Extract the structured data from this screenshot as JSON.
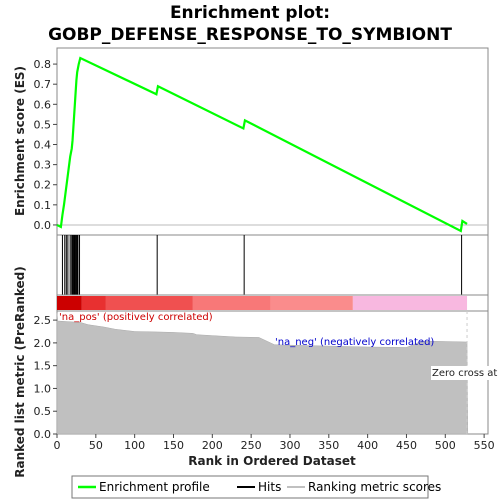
{
  "chart_data": [
    {
      "type": "line",
      "title": [
        "Enrichment plot:",
        "GOBP_DEFENSE_RESPONSE_TO_SYMBIONT"
      ],
      "ylabel": "Enrichment score (ES)",
      "ylim": [
        -0.05,
        0.88
      ],
      "yticks": [
        0.0,
        0.1,
        0.2,
        0.3,
        0.4,
        0.5,
        0.6,
        0.7,
        0.8
      ],
      "xlim": [
        0,
        555
      ],
      "series": [
        {
          "name": "Enrichment profile",
          "color": "#00ff00",
          "x": [
            0,
            5,
            7,
            9,
            11,
            13,
            15,
            17,
            19,
            20,
            21,
            22,
            23,
            24,
            25,
            26,
            27,
            28,
            30,
            128,
            130,
            240,
            242,
            520,
            522,
            528
          ],
          "y": [
            0.0,
            -0.01,
            0.05,
            0.1,
            0.16,
            0.22,
            0.28,
            0.34,
            0.38,
            0.42,
            0.48,
            0.54,
            0.6,
            0.66,
            0.72,
            0.76,
            0.78,
            0.8,
            0.83,
            0.65,
            0.69,
            0.48,
            0.52,
            -0.03,
            0.02,
            0.005
          ]
        }
      ]
    },
    {
      "type": "hits",
      "legend_name": "Hits",
      "hit_color": "#000000",
      "positions": [
        7,
        10,
        12,
        14,
        17,
        19,
        20,
        21,
        22,
        23,
        24,
        25,
        26,
        27,
        29,
        129,
        241,
        521
      ]
    },
    {
      "type": "area",
      "ylabel": "Ranked list metric (PreRanked)",
      "xlabel": "Rank in Ordered Dataset",
      "xlim": [
        0,
        555
      ],
      "ylim": [
        0,
        2.7
      ],
      "xticks": [
        0,
        50,
        100,
        150,
        200,
        250,
        300,
        350,
        400,
        450,
        500,
        550
      ],
      "yticks": [
        0.0,
        0.5,
        1.0,
        1.5,
        2.0,
        2.5
      ],
      "series": [
        {
          "name": "Ranking metric scores",
          "color": "#c0c0c0",
          "x": [
            0,
            1,
            30,
            40,
            60,
            75,
            85,
            100,
            130,
            150,
            175,
            180,
            200,
            230,
            260,
            280,
            300,
            350,
            400,
            450,
            470,
            500,
            528,
            529
          ],
          "y": [
            2.65,
            2.48,
            2.45,
            2.4,
            2.35,
            2.3,
            2.28,
            2.25,
            2.24,
            2.23,
            2.21,
            2.18,
            2.16,
            2.13,
            2.12,
            1.96,
            1.95,
            1.93,
            1.91,
            1.9,
            2.04,
            2.03,
            2.02,
            0
          ]
        }
      ],
      "annotations": {
        "pos_label": "'na_pos' (positively correlated)",
        "neg_label": "'na_neg' (negatively correlated)",
        "zero_cross": "Zero cross at",
        "pos_color": "#cc0000",
        "neg_color": "#0000cc"
      },
      "zero_cross_rank": 528
    },
    {
      "type": "heatmap",
      "segments": [
        {
          "from": 0,
          "to": 32,
          "color": "#cc0000"
        },
        {
          "from": 32,
          "to": 63,
          "color": "#e83030"
        },
        {
          "from": 63,
          "to": 175,
          "color": "#f05050"
        },
        {
          "from": 175,
          "to": 275,
          "color": "#f87878"
        },
        {
          "from": 275,
          "to": 381,
          "color": "#fa8c8c"
        },
        {
          "from": 381,
          "to": 528,
          "color": "#f8b8e0"
        }
      ]
    }
  ],
  "legend": {
    "items": [
      {
        "label": "Enrichment profile",
        "color": "#00ff00"
      },
      {
        "label": "Hits",
        "color": "#000000"
      },
      {
        "label": "Ranking metric scores",
        "color": "#c0c0c0"
      }
    ]
  }
}
